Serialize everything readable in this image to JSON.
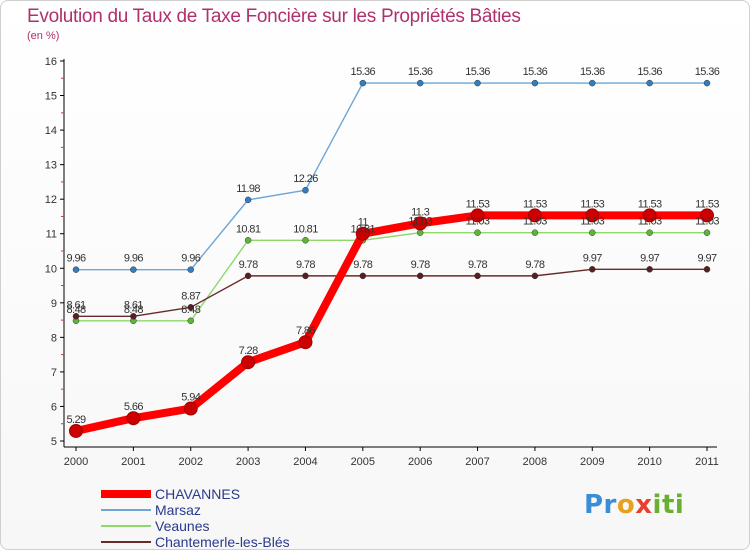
{
  "header": {
    "title": "Evolution du Taux de Taxe Foncière sur les Propriétés Bâties",
    "unit": "(en %)"
  },
  "logo": {
    "text": "Proxiti",
    "parts": [
      "Pr",
      "o",
      "x",
      "iti"
    ]
  },
  "colors": {
    "title": "#b0306e",
    "axis": "#000000",
    "grid": "#d8d8d8",
    "tick_minor": "#e03030"
  },
  "chart_data": {
    "type": "line",
    "title": "Evolution du Taux de Taxe Foncière sur les Propriétés Bâties",
    "ylabel": "(en %)",
    "xlabel": "",
    "categories": [
      "2000",
      "2001",
      "2002",
      "2003",
      "2004",
      "2005",
      "2006",
      "2007",
      "2008",
      "2009",
      "2010",
      "2011"
    ],
    "ylim": [
      5,
      16
    ],
    "yticks": [
      5,
      6,
      7,
      8,
      9,
      10,
      11,
      12,
      13,
      14,
      15,
      16
    ],
    "grid": false,
    "legend": "bottom-left",
    "series": [
      {
        "name": "CHAVANNES",
        "color": "#ff0000",
        "marker": "#cc0000",
        "width": 8,
        "values": [
          5.29,
          5.66,
          5.94,
          7.28,
          7.86,
          11.0,
          11.3,
          11.53,
          11.53,
          11.53,
          11.53,
          11.53
        ],
        "labels": [
          "5.29",
          "5.66",
          "5.94",
          "7.28",
          "7.86",
          "11",
          "11.3",
          "11.53",
          "11.53",
          "11.53",
          "11.53",
          "11.53"
        ]
      },
      {
        "name": "Marsaz",
        "color": "#6fa6d6",
        "marker": "#2f7fc2",
        "width": 1.4,
        "values": [
          9.96,
          9.96,
          9.96,
          11.98,
          12.26,
          15.36,
          15.36,
          15.36,
          15.36,
          15.36,
          15.36,
          15.36
        ],
        "labels": [
          "9.96",
          "9.96",
          "9.96",
          "11.98",
          "12.26",
          "15.36",
          "15.36",
          "15.36",
          "15.36",
          "15.36",
          "15.36",
          "15.36"
        ]
      },
      {
        "name": "Veaunes",
        "color": "#8fd86a",
        "marker": "#5db63a",
        "width": 1.4,
        "values": [
          8.48,
          8.48,
          8.48,
          10.81,
          10.81,
          10.81,
          11.03,
          11.03,
          11.03,
          11.03,
          11.03,
          11.03
        ],
        "labels": [
          "8.48",
          "8.48",
          "8.48",
          "10.81",
          "10.81",
          "10.81",
          "11.03",
          "11.03",
          "11.03",
          "11.03",
          "11.03",
          "11.03"
        ]
      },
      {
        "name": "Chantemerle-les-Blés",
        "color": "#6b2a2a",
        "marker": "#5a1e1e",
        "width": 1.4,
        "values": [
          8.61,
          8.61,
          8.87,
          9.78,
          9.78,
          9.78,
          9.78,
          9.78,
          9.78,
          9.97,
          9.97,
          9.97
        ],
        "labels": [
          "8.61",
          "8.61",
          "8.87",
          "9.78",
          "9.78",
          "9.78",
          "9.78",
          "9.78",
          "9.78",
          "9.97",
          "9.97",
          "9.97"
        ]
      }
    ]
  }
}
